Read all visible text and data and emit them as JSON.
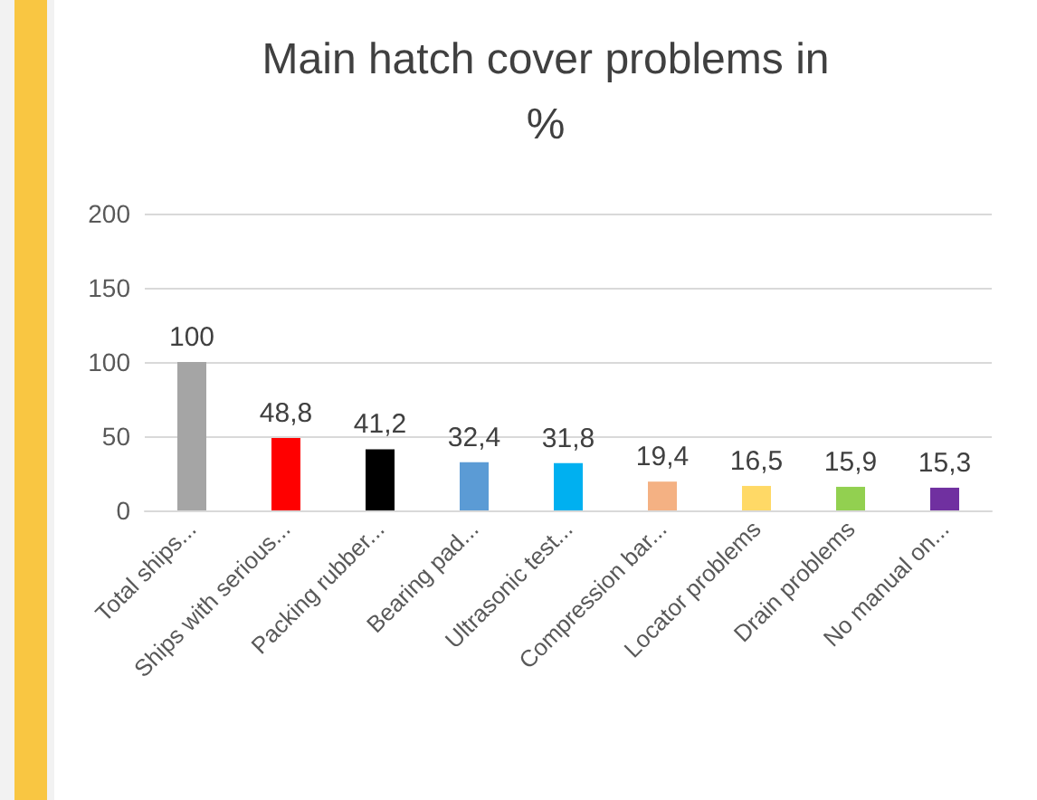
{
  "chart_data": {
    "type": "bar",
    "title": "Main hatch cover problems in\n%",
    "categories": [
      "Total ships...",
      "Ships with serious...",
      "Packing rubber...",
      "Bearing pad...",
      "Ultrasonic test...",
      "Compression bar...",
      "Locator problems",
      "Drain problems",
      "No manual on..."
    ],
    "values": [
      100,
      48.8,
      41.2,
      32.4,
      31.8,
      19.4,
      16.5,
      15.9,
      15.3
    ],
    "colors": [
      "#a5a5a5",
      "#ff0000",
      "#000000",
      "#5b9bd5",
      "#00b0f0",
      "#f4b183",
      "#ffd966",
      "#92d050",
      "#7030a0"
    ],
    "value_labels": [
      "100",
      "48,8",
      "41,2",
      "32,4",
      "31,8",
      "19,4",
      "16,5",
      "15,9",
      "15,3"
    ],
    "ylim": [
      0,
      200
    ],
    "yticks": [
      0,
      50,
      100,
      150,
      200
    ],
    "grid": "y"
  }
}
